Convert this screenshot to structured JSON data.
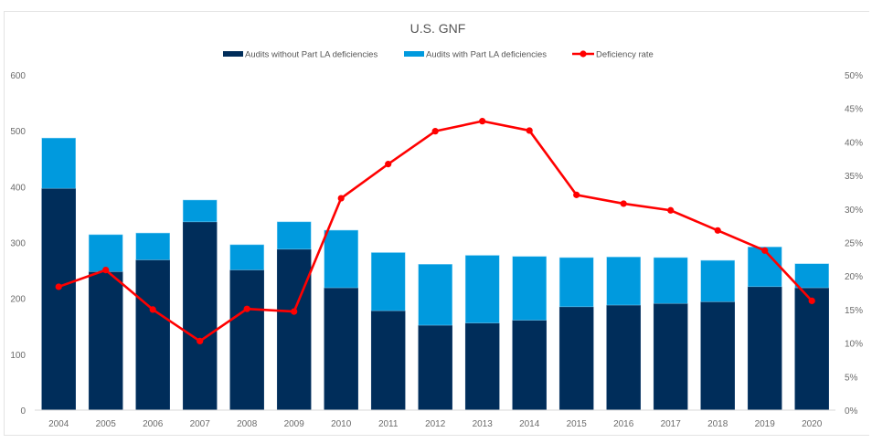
{
  "chart_data": {
    "type": "bar",
    "subtype": "stacked-bar-with-line-secondary-axis",
    "title": "U.S. GNF",
    "xlabel": "",
    "ylabel": "",
    "y2label": "",
    "categories": [
      "2004",
      "2005",
      "2006",
      "2007",
      "2008",
      "2009",
      "2010",
      "2011",
      "2012",
      "2013",
      "2014",
      "2015",
      "2016",
      "2017",
      "2018",
      "2019",
      "2020"
    ],
    "series": [
      {
        "name": "Audits without Part LA deficiencies",
        "type": "bar",
        "axis": "left",
        "color": "#002D5A",
        "values": [
          397,
          248,
          269,
          337,
          251,
          288,
          219,
          178,
          152,
          156,
          161,
          185,
          188,
          191,
          194,
          221,
          219
        ]
      },
      {
        "name": "Audits with Part LA deficiencies",
        "type": "bar",
        "axis": "left",
        "color": "#009ADE",
        "values": [
          90,
          66,
          48,
          39,
          45,
          49,
          103,
          104,
          109,
          121,
          114,
          88,
          86,
          82,
          74,
          71,
          43
        ]
      },
      {
        "name": "Deficiency rate",
        "type": "line",
        "axis": "right",
        "color": "#FF0000",
        "values": [
          18.4,
          20.9,
          15.0,
          10.3,
          15.1,
          14.7,
          31.6,
          36.7,
          41.6,
          43.1,
          41.7,
          32.1,
          30.8,
          29.8,
          26.8,
          23.8,
          16.3
        ]
      }
    ],
    "ylim": [
      0,
      600
    ],
    "yticks": [
      0,
      100,
      200,
      300,
      400,
      500,
      600
    ],
    "y2lim": [
      0,
      50
    ],
    "y2ticks": [
      "0%",
      "5%",
      "10%",
      "15%",
      "20%",
      "25%",
      "30%",
      "35%",
      "40%",
      "45%",
      "50%"
    ],
    "grid": false,
    "legend": {
      "position": "top-center",
      "entries": [
        "Audits without Part LA deficiencies",
        "Audits with Part LA deficiencies",
        "Deficiency rate"
      ]
    }
  }
}
